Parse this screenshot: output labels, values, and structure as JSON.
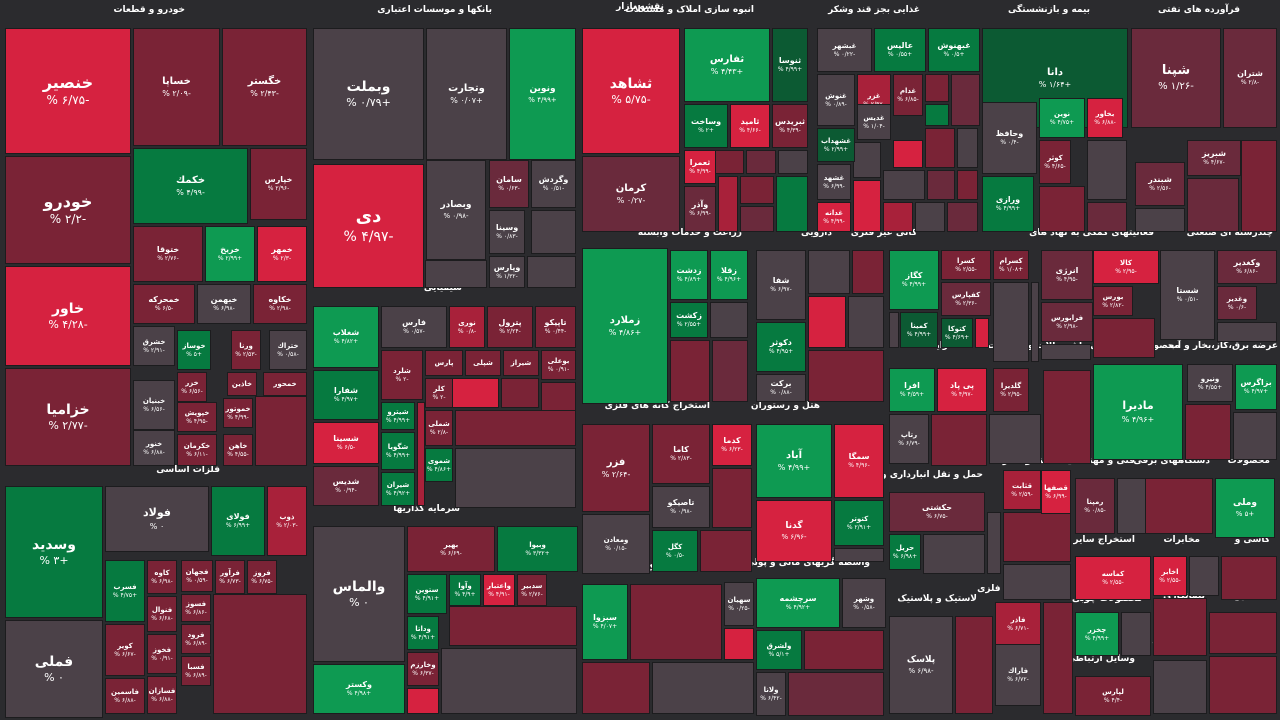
{
  "title": "نقشه بازار",
  "colors": {
    "background": "#2b2b2e",
    "strong_green": "#0e9a52",
    "green": "#067a40",
    "dark_green": "#0c5a33",
    "strong_red": "#d62240",
    "red": "#a8213a",
    "dark_red": "#7a2336",
    "neutral": "#4b4148"
  },
  "sectors": [
    {
      "name": "خودرو و قطعات"
    },
    {
      "name": "بانکها و موسسات اعتباری"
    },
    {
      "name": "انبوه سازی املاک و مستغلات"
    },
    {
      "name": "غذایی بجز قند وشکر"
    },
    {
      "name": "بیمه و بازنشستگی"
    },
    {
      "name": "فرآورده های نفتی"
    },
    {
      "name": "زراعت و خدمات وابسته"
    },
    {
      "name": "دارویی"
    },
    {
      "name": "کانی غیر فلزی"
    },
    {
      "name": "فعالیتهای کمکی به نهاد های"
    },
    {
      "name": "چندرشته ای صنعتی"
    },
    {
      "name": "شیمیایی"
    },
    {
      "name": "فلزات اساسی"
    },
    {
      "name": "استخراج کانه های فلزی"
    },
    {
      "name": "هتل و رستوران"
    },
    {
      "name": "رایانه"
    },
    {
      "name": "ماشین آلات و تجهیزات"
    },
    {
      "name": "محصولات کامپیوتری"
    },
    {
      "name": "عرضه برق،گاز،بخار و آب"
    },
    {
      "name": "سرمایه گذاریها"
    },
    {
      "name": "سیمان آهک گچ"
    },
    {
      "name": "حمل و نقل انبارداری و"
    },
    {
      "name": "قند و شکر"
    },
    {
      "name": "فنی و مهندسی"
    },
    {
      "name": "دستگاههای برقی"
    },
    {
      "name": "محصولات"
    },
    {
      "name": "واسطه گریهای مالی و پولی"
    },
    {
      "name": "لاستیک و پلاستیک"
    },
    {
      "name": "محصولات فلزی"
    },
    {
      "name": "استخراج سایر"
    },
    {
      "name": "مخابرات"
    },
    {
      "name": "کاشی و"
    },
    {
      "name": "محصولات چوبی"
    },
    {
      "name": "پیمانکاری"
    },
    {
      "name": "استخراج"
    },
    {
      "name": "اطلاعات و"
    },
    {
      "name": "وسایل ارتباطی"
    },
    {
      "name": "فعالیتها"
    },
    {
      "name": "منسوجات"
    }
  ],
  "tiles": [
    {
      "name": "خنصير",
      "change": "-۶/۷۵ %"
    },
    {
      "name": "خساپا",
      "change": "-۲/۰۹ %"
    },
    {
      "name": "خگستر",
      "change": "-۲/۴۳ %"
    },
    {
      "name": "خودرو",
      "change": "-۲/۲ %"
    },
    {
      "name": "خكمك",
      "change": "-۴/۹۹ %"
    },
    {
      "name": "خپارس",
      "change": "-۲/۹۶ %"
    },
    {
      "name": "ختوقا",
      "change": "-۲/۷۶ %"
    },
    {
      "name": "خريخ",
      "change": "+۲/۹۹ %"
    },
    {
      "name": "خمهر",
      "change": "-۲/۳ %"
    },
    {
      "name": "خاور",
      "change": "-۴/۲۸ %"
    },
    {
      "name": "خمحركه",
      "change": "-۶/۵ %"
    },
    {
      "name": "خبهمن",
      "change": "-۶/۹۸ %"
    },
    {
      "name": "خكاوه",
      "change": "-۲/۹۸ %"
    },
    {
      "name": "خزاميا",
      "change": "-۲/۷۷ %"
    },
    {
      "name": "وبملت",
      "change": "+۰/۷۹ %"
    },
    {
      "name": "وتجارت",
      "change": "+۰/۰۷ %"
    },
    {
      "name": "ونوين",
      "change": "+۴/۹۹ %"
    },
    {
      "name": "دی",
      "change": "-۴/۹۷ %"
    },
    {
      "name": "سامان",
      "change": "-۰/۶۳ %"
    },
    {
      "name": "وگردش",
      "change": "-۰/۵۱ %"
    },
    {
      "name": "وبصادر",
      "change": "-۰/۹۸ %"
    },
    {
      "name": "وسينا",
      "change": "-۰/۸۳ %"
    },
    {
      "name": "وپارس",
      "change": "-۱/۳۲ %"
    },
    {
      "name": "ثشاهد",
      "change": "-۵/۷۵ %"
    },
    {
      "name": "ثفارس",
      "change": "+۴/۴۳ %"
    },
    {
      "name": "ثنوسا",
      "change": "+۴/۹۹ %"
    },
    {
      "name": "وساخت",
      "change": "+۲ %"
    },
    {
      "name": "ثاميد",
      "change": "-۴/۶۶ %"
    },
    {
      "name": "ثبريدس",
      "change": "-۴/۳۹ %"
    },
    {
      "name": "كرمان",
      "change": "-۰/۲۷ %"
    },
    {
      "name": "ثعمرا",
      "change": "-۴/۹۹ %"
    },
    {
      "name": "وآذر",
      "change": "-۶/۹۹ %"
    },
    {
      "name": "غبشهر",
      "change": "-۰/۲۲ %"
    },
    {
      "name": "عاليس",
      "change": "+۰/۵۵ %"
    },
    {
      "name": "غبهنوش",
      "change": "+۰/۵ %"
    },
    {
      "name": "دانا",
      "change": "+۱/۶۴ %"
    },
    {
      "name": "شپنا",
      "change": "-۱/۲۶ %"
    },
    {
      "name": "شتران",
      "change": "-۲/۸ %"
    },
    {
      "name": "غنوش",
      "change": "-۰/۸۹ %"
    },
    {
      "name": "غزر",
      "change": "-۲/۹۷ %"
    },
    {
      "name": "غدام",
      "change": "-۶/۸۵ %"
    },
    {
      "name": "غدیس",
      "change": "-۱/۰۴ %"
    },
    {
      "name": "وحافظ",
      "change": "-۰/۴ %"
    },
    {
      "name": "نوين",
      "change": "+۴/۷۵ %"
    },
    {
      "name": "بخاور",
      "change": "-۶/۸۸ %"
    },
    {
      "name": "غشهداب",
      "change": "+۲/۹۹ %"
    },
    {
      "name": "كوثر",
      "change": "-۴/۶۵ %"
    },
    {
      "name": "شبريز",
      "change": "-۴/۶۷ %"
    },
    {
      "name": "غشهد",
      "change": "-۶/۹۹ %"
    },
    {
      "name": "شبندر",
      "change": "-۲/۵۶ %"
    },
    {
      "name": "غدانه",
      "change": "-۴/۹۹ %"
    },
    {
      "name": "ورازی",
      "change": "+۴/۹۹ %"
    },
    {
      "name": "زملارد",
      "change": "+۴/۸۶ %"
    },
    {
      "name": "زدشت",
      "change": "+۴/۸۹ %"
    },
    {
      "name": "زقلا",
      "change": "+۴/۹۶ %"
    },
    {
      "name": "شفا",
      "change": "-۶/۹۷ %"
    },
    {
      "name": "كگاز",
      "change": "+۴/۹۹ %"
    },
    {
      "name": "كسرا",
      "change": "-۲/۵۵ %"
    },
    {
      "name": "كسرام",
      "change": "+۱/۰۸ %"
    },
    {
      "name": "انرژی",
      "change": "-۴/۹۵ %"
    },
    {
      "name": "كالا",
      "change": "-۲/۹۵ %"
    },
    {
      "name": "وكغدير",
      "change": "-۶/۸۶ %"
    },
    {
      "name": "زكشت",
      "change": "+۲/۵۵ %"
    },
    {
      "name": "دكوثر",
      "change": "+۴/۹۵ %"
    },
    {
      "name": "كفپارس",
      "change": "-۲/۳۶ %"
    },
    {
      "name": "كمينا",
      "change": "+۴/۹۹ %"
    },
    {
      "name": "كتوكا",
      "change": "+۴/۶۹ %"
    },
    {
      "name": "بورس",
      "change": "-۲/۸۲ %"
    },
    {
      "name": "فرابورس",
      "change": "-۲/۹۸ %"
    },
    {
      "name": "شستا",
      "change": "-۰/۵۱ %"
    },
    {
      "name": "وغدير",
      "change": "-۰/۶ %"
    },
    {
      "name": "بركت",
      "change": "-۰/۸۸ %"
    },
    {
      "name": "شغلاب",
      "change": "+۴/۸۲ %"
    },
    {
      "name": "فارس",
      "change": "-۰/۵۷ %"
    },
    {
      "name": "نوری",
      "change": "-۰/۸ %"
    },
    {
      "name": "پترول",
      "change": "-۲/۲۴ %"
    },
    {
      "name": "تاپیکو",
      "change": "-۰/۴۴ %"
    },
    {
      "name": "شفارا",
      "change": "+۴/۹۷ %"
    },
    {
      "name": "شلرد",
      "change": "-۲ %"
    },
    {
      "name": "پارس",
      "change": "-۶/۱ %"
    },
    {
      "name": "شپلی",
      "change": "-۲/۹۵ %"
    },
    {
      "name": "شيراز",
      "change": "-۰/۵۷ %"
    },
    {
      "name": "بوعلی",
      "change": "-۰/۹۱ %"
    },
    {
      "name": "كلر",
      "change": "-۲ %"
    },
    {
      "name": "شيترو",
      "change": "+۴/۹۹ %"
    },
    {
      "name": "شسینا",
      "change": "-۶/۵ %"
    },
    {
      "name": "شملی",
      "change": "-۲/۸ %"
    },
    {
      "name": "شگویا",
      "change": "+۴/۹۹ %"
    },
    {
      "name": "شموی",
      "change": "+۴/۸۶ %"
    },
    {
      "name": "شدیس",
      "change": "-۰/۹۴ %"
    },
    {
      "name": "شیران",
      "change": "+۴/۹۲ %"
    },
    {
      "name": "فزر",
      "change": "-۲/۶۴ %"
    },
    {
      "name": "كاما",
      "change": "-۲/۸۳ %"
    },
    {
      "name": "كدما",
      "change": "-۶/۲۳ %"
    },
    {
      "name": "تاصیكو",
      "change": "-۰/۹۸ %"
    },
    {
      "name": "ومعادن",
      "change": "-۰/۱۵ %"
    },
    {
      "name": "كگل",
      "change": "-۰/۵ %"
    },
    {
      "name": "آباد",
      "change": "+۴/۹۹ %"
    },
    {
      "name": "سمگا",
      "change": "-۴/۹۶ %"
    },
    {
      "name": "گدنا",
      "change": "-۶/۹۶ %"
    },
    {
      "name": "كتوتر",
      "change": "+۲/۹۱ %"
    },
    {
      "name": "افرا",
      "change": "+۴/۵۹ %"
    },
    {
      "name": "پی پاد",
      "change": "-۴/۹۷ %"
    },
    {
      "name": "گلدیرا",
      "change": "-۲/۹۵ %"
    },
    {
      "name": "ماديرا",
      "change": "+۴/۹۶ %"
    },
    {
      "name": "بزاگرس",
      "change": "+۴/۹۷ %"
    },
    {
      "name": "ونيرو",
      "change": "+۴/۵۵ %"
    },
    {
      "name": "رتاپ",
      "change": "-۶/۷۹ %"
    },
    {
      "name": "فولاد",
      "change": "۰ %"
    },
    {
      "name": "فولای",
      "change": "+۶/۹۹ %"
    },
    {
      "name": "ذوب",
      "change": "-۲/۰۳ %"
    },
    {
      "name": "وسدید",
      "change": "+۳ %"
    },
    {
      "name": "فملی",
      "change": "۰ %"
    },
    {
      "name": "كاوه",
      "change": "-۶/۹۸ %"
    },
    {
      "name": "فجهان",
      "change": "-۰/۵۹ %"
    },
    {
      "name": "فرآور",
      "change": "-۶/۷۳ %"
    },
    {
      "name": "فروز",
      "change": "-۶/۷۵ %"
    },
    {
      "name": "فسرب",
      "change": "+۴/۷۵ %"
    },
    {
      "name": "فسوز",
      "change": "-۶/۸۶ %"
    },
    {
      "name": "فنوال",
      "change": "-۶/۶۸ %"
    },
    {
      "name": "فرود",
      "change": "-۶/۸۹ %"
    },
    {
      "name": "كوير",
      "change": "-۶/۶۷ %"
    },
    {
      "name": "فخوز",
      "change": "-۰/۹۱ %"
    },
    {
      "name": "فسبا",
      "change": "-۶/۸۹ %"
    },
    {
      "name": "فاسمین",
      "change": "-۶/۸۸ %"
    },
    {
      "name": "فسازان",
      "change": "-۶/۸۸ %"
    },
    {
      "name": "خوساز",
      "change": "+۵ %"
    },
    {
      "name": "ورنا",
      "change": "-۲/۵۳ %"
    },
    {
      "name": "ختراك",
      "change": "-۰/۵۸ %"
    },
    {
      "name": "خشرق",
      "change": "-۲/۹۱ %"
    },
    {
      "name": "خزر",
      "change": "-۶/۵۶ %"
    },
    {
      "name": "خاذین",
      "change": "-۶/۸۹ %"
    },
    {
      "name": "خمحور",
      "change": "-۲/۹۹ %"
    },
    {
      "name": "خبنیان",
      "change": "-۶/۵۶ %"
    },
    {
      "name": "خپویش",
      "change": "-۴/۹۵ %"
    },
    {
      "name": "خموتور",
      "change": "-۴/۹۹ %"
    },
    {
      "name": "خنور",
      "change": "-۶/۸۸ %"
    },
    {
      "name": "خكرمان",
      "change": "-۶/۱۱ %"
    },
    {
      "name": "خاهن",
      "change": "-۴/۵۵ %"
    },
    {
      "name": "والماس",
      "change": "۰ %"
    },
    {
      "name": "بهير",
      "change": "-۶/۶۹ %"
    },
    {
      "name": "وبيوا",
      "change": "+۳/۳۲ %"
    },
    {
      "name": "ستوين",
      "change": "+۴/۹۱ %"
    },
    {
      "name": "وآوا",
      "change": "+۴/۹ %"
    },
    {
      "name": "واعتبار",
      "change": "-۴/۹۱ %"
    },
    {
      "name": "سدبير",
      "change": "-۲/۷۶ %"
    },
    {
      "name": "وداتا",
      "change": "+۴/۹۱ %"
    },
    {
      "name": "وخارزم",
      "change": "-۶/۳۷ %"
    },
    {
      "name": "وكستر",
      "change": "+۴/۹۸ %"
    },
    {
      "name": "سبزوا",
      "change": "+۴/۰۷ %"
    },
    {
      "name": "سهيان",
      "change": "-۰/۲۵ %"
    },
    {
      "name": "سرچشمه",
      "change": "+۴/۹۲ %"
    },
    {
      "name": "وشهر",
      "change": "-۰/۵۸ %"
    },
    {
      "name": "ولشرق",
      "change": "+۵/۱ %"
    },
    {
      "name": "ولغدر",
      "change": "+۴/۹۹ %"
    },
    {
      "name": "ولانا",
      "change": "-۶/۴۲ %"
    },
    {
      "name": "حكشتی",
      "change": "-۶/۷۵ %"
    },
    {
      "name": "حريل",
      "change": "+۶/۹۸ %"
    },
    {
      "name": "قثابت",
      "change": "-۲/۵۹ %"
    },
    {
      "name": "قصفها",
      "change": "-۶/۹۹ %"
    },
    {
      "name": "رمپنا",
      "change": "-۰/۸۵ %"
    },
    {
      "name": "وملی",
      "change": "+۵ %"
    },
    {
      "name": "پلاسک",
      "change": "-۶/۹۸ %"
    },
    {
      "name": "فاذر",
      "change": "-۶/۷۱ %"
    },
    {
      "name": "فاراك",
      "change": "-۶/۷۲ %"
    },
    {
      "name": "كماسه",
      "change": "-۲/۵۵ %"
    },
    {
      "name": "اخابر",
      "change": "-۲/۵۵ %"
    },
    {
      "name": "چخزر",
      "change": "+۴/۹۹ %"
    },
    {
      "name": "لپارس",
      "change": "-۴/۴ %"
    }
  ]
}
